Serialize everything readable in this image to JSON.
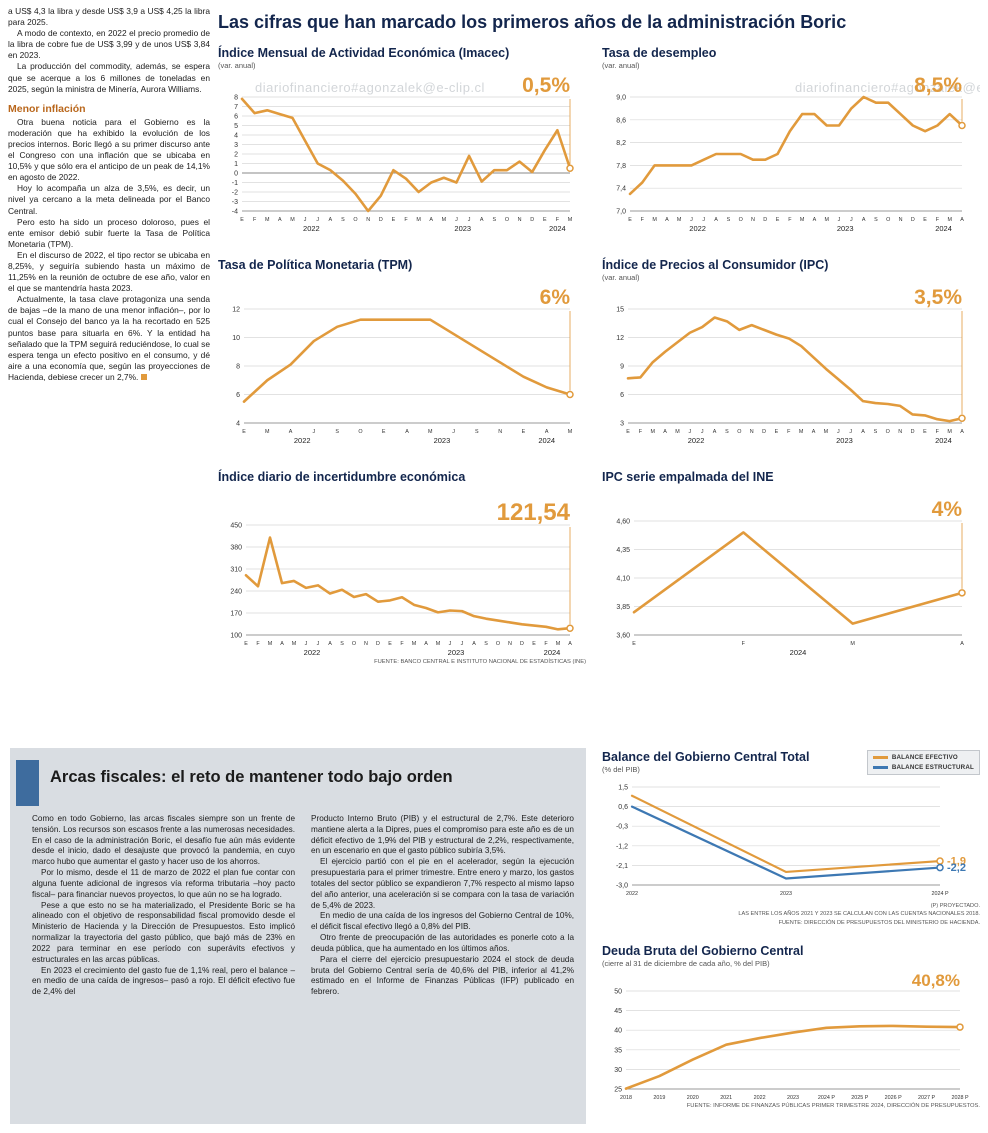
{
  "watermark": "diariofinanciero#agonzalek@e-clip.cl",
  "colors": {
    "accent_orange": "#E19A3C",
    "accent_blue": "#3D78B3",
    "headline_navy": "#13264D",
    "subhead_brown": "#B9671C",
    "panel_gray": "#D9DDE2"
  },
  "left_article": {
    "paragraphs": [
      "a US$ 4,3 la libra y desde US$ 3,9 a US$ 4,25 la libra para 2025.",
      "A modo de contexto, en 2022 el precio promedio de la libra de cobre fue de US$ 3,99 y de unos US$ 3,84 en 2023.",
      "La producción del commodity, además, se espera que se acerque a los 6 millones de toneladas en 2025, según la ministra de Minería, Aurora Williams."
    ],
    "subhead": "Menor inflación",
    "paragraphs2": [
      "Otra buena noticia para el Gobierno es la moderación que ha exhibido la evolución de los precios internos. Boric llegó a su primer discurso ante el Congreso con una inflación que se ubicaba en 10,5% y que sólo era el anticipo de un peak de 14,1% en agosto de 2022.",
      "Hoy lo acompaña un alza de 3,5%, es decir, un nivel ya cercano a la meta delineada por el Banco Central.",
      "Pero esto ha sido un proceso doloroso, pues el ente emisor debió subir fuerte la Tasa de Política Monetaria (TPM).",
      "En el discurso de 2022, el tipo rector se ubicaba en 8,25%, y seguiría subiendo hasta un máximo de 11,25% en la reunión de octubre de ese año, valor en el que se mantendría hasta 2023.",
      "Actualmente, la tasa clave protagoniza una senda de bajas –de la mano de una menor inflación–, por lo cual el Consejo del banco ya la ha recortado en 525 puntos base para situarla en 6%. Y la entidad ha señalado que la TPM seguirá reduciéndose, lo cual se espera tenga un efecto positivo en el consumo, y dé aire a una economía que, según las proyecciones de Hacienda, debiese crecer un 2,7%."
    ]
  },
  "main": {
    "headline": "Las cifras que han marcado los primeros años de la administración Boric"
  },
  "fiscal": {
    "headline": "Arcas fiscales: el reto de mantener todo bajo orden",
    "col1": [
      "Como en todo Gobierno, las arcas fiscales siempre son un frente de tensión. Los recursos son escasos frente a las numerosas necesidades. En el caso de la administración Boric, el desafío fue aún más evidente desde el inicio, dado el desajuste que provocó la pandemia, en cuyo marco hubo que aumentar el gasto y hacer uso de los ahorros.",
      "Por lo mismo, desde el 11 de marzo de 2022 el plan fue contar con alguna fuente adicional de ingresos vía reforma tributaria –hoy pacto fiscal– para financiar nuevos proyectos, lo que aún no se ha logrado.",
      "Pese a que esto no se ha materializado, el Presidente Boric se ha alineado con el objetivo de responsabilidad fiscal promovido desde el Ministerio de Hacienda y la Dirección de Presupuestos. Esto implicó normalizar la trayectoria del gasto público, que bajó más de 23% en 2022 para terminar en ese período con superávits efectivos y estructurales en las arcas públicas.",
      "En 2023 el crecimiento del gasto fue de 1,1% real, pero el balance –en medio de una caída de ingresos– pasó a rojo. El déficit efectivo fue de 2,4% del"
    ],
    "col2": [
      "Producto Interno Bruto (PIB) y el estructural de 2,7%. Este deterioro mantiene alerta a la Dipres, pues el compromiso para este año es de un déficit efectivo de 1,9% del PIB y estructural de 2,2%, respectivamente, en un escenario en que el gasto público subiría 3,5%.",
      "El ejercicio partió con el pie en el acelerador, según la ejecución presupuestaria para el primer trimestre. Entre enero y marzo, los gastos totales del sector público se expandieron 7,7% respecto al mismo lapso del año anterior, una aceleración si se compara con la tasa de variación de 5,4% de 2023.",
      "En medio de una caída de los ingresos del Gobierno Central de 10%, el déficit fiscal efectivo llegó a 0,8% del PIB.",
      "Otro frente de preocupación de las autoridades es ponerle coto a la deuda pública, que ha aumentado en los últimos años.",
      "Para el cierre del ejercicio presupuestario 2024 el stock de deuda bruta del Gobierno Central sería de 40,6% del PIB, inferior al 41,2% estimado en el Informe de Finanzas Públicas (IFP) publicado en febrero."
    ]
  },
  "chart_data": [
    {
      "type": "line",
      "title": "Índice Mensual de Actividad Económica (Imacec)",
      "subtitle": "(var. anual)",
      "value_label": "0,5%",
      "value_size": 21,
      "ylim": [
        -4,
        8
      ],
      "zero_dark": true,
      "padding": {
        "l": 24,
        "r": 16,
        "t": 26,
        "b": 24
      },
      "yticks": [
        {
          "v": 8,
          "label": "8"
        },
        {
          "v": 7,
          "label": "7"
        },
        {
          "v": 6,
          "label": "6"
        },
        {
          "v": 5,
          "label": "5"
        },
        {
          "v": 4,
          "label": "4"
        },
        {
          "v": 3,
          "label": "3"
        },
        {
          "v": 2,
          "label": "2"
        },
        {
          "v": 1,
          "label": "1"
        },
        {
          "v": 0,
          "label": "0"
        },
        {
          "v": -1,
          "label": "-1"
        },
        {
          "v": -2,
          "label": "-2"
        },
        {
          "v": -3,
          "label": "-3"
        },
        {
          "v": -4,
          "label": "-4"
        }
      ],
      "x_labels": [
        "E",
        "F",
        "M",
        "A",
        "M",
        "J",
        "J",
        "A",
        "S",
        "O",
        "N",
        "D",
        "E",
        "F",
        "M",
        "A",
        "M",
        "J",
        "J",
        "A",
        "S",
        "O",
        "N",
        "D",
        "E",
        "F",
        "M"
      ],
      "years": [
        {
          "label": "2022",
          "from": 0,
          "to": 11
        },
        {
          "label": "2023",
          "from": 12,
          "to": 23
        },
        {
          "label": "2024",
          "from": 24,
          "to": 26
        }
      ],
      "series": [
        {
          "name": "Imacec var. anual",
          "color": "#E19A3C",
          "values": [
            7.8,
            6.3,
            6.6,
            6.2,
            5.8,
            3.4,
            1.0,
            0.3,
            -0.8,
            -2.2,
            -4.0,
            -2.4,
            0.3,
            -0.6,
            -2.0,
            -1.0,
            -0.5,
            -1.0,
            1.8,
            -0.9,
            0.3,
            0.3,
            1.2,
            0.1,
            2.4,
            4.5,
            0.5
          ],
          "endpoint": true,
          "callout": true
        }
      ]
    },
    {
      "type": "line",
      "title": "Tasa de desempleo",
      "subtitle": "(var. anual)",
      "value_label": "8,5%",
      "value_size": 21,
      "ylim": [
        7.0,
        9.0
      ],
      "padding": {
        "l": 28,
        "r": 16,
        "t": 26,
        "b": 24
      },
      "yticks": [
        {
          "v": 9.0,
          "label": "9,0"
        },
        {
          "v": 8.6,
          "label": "8,6"
        },
        {
          "v": 8.2,
          "label": "8,2"
        },
        {
          "v": 7.8,
          "label": "7,8"
        },
        {
          "v": 7.4,
          "label": "7,4"
        },
        {
          "v": 7.0,
          "label": "7,0"
        }
      ],
      "x_labels": [
        "E",
        "F",
        "M",
        "A",
        "M",
        "J",
        "J",
        "A",
        "S",
        "O",
        "N",
        "D",
        "E",
        "F",
        "M",
        "A",
        "M",
        "J",
        "J",
        "A",
        "S",
        "O",
        "N",
        "D",
        "E",
        "F",
        "M",
        "A"
      ],
      "years": [
        {
          "label": "2022",
          "from": 0,
          "to": 11
        },
        {
          "label": "2023",
          "from": 12,
          "to": 23
        },
        {
          "label": "2024",
          "from": 24,
          "to": 27
        }
      ],
      "series": [
        {
          "name": "Tasa de desempleo",
          "color": "#E19A3C",
          "values": [
            7.3,
            7.5,
            7.8,
            7.8,
            7.8,
            7.8,
            7.9,
            8.0,
            8.0,
            8.0,
            7.9,
            7.9,
            8.0,
            8.4,
            8.7,
            8.7,
            8.5,
            8.5,
            8.8,
            9.0,
            8.9,
            8.9,
            8.7,
            8.5,
            8.4,
            8.5,
            8.7,
            8.5
          ],
          "endpoint": true,
          "callout": true
        }
      ]
    },
    {
      "type": "line",
      "title": "Tasa de Política Monetaria (TPM)",
      "value_label": "6%",
      "value_size": 21,
      "ylim": [
        4,
        12
      ],
      "padding": {
        "l": 26,
        "r": 16,
        "t": 26,
        "b": 24
      },
      "yticks": [
        {
          "v": 12,
          "label": "12"
        },
        {
          "v": 10,
          "label": "10"
        },
        {
          "v": 8,
          "label": "8"
        },
        {
          "v": 6,
          "label": "6"
        },
        {
          "v": 4,
          "label": "4"
        }
      ],
      "x_labels": [
        "E",
        "M",
        "A",
        "J",
        "S",
        "O",
        "E",
        "A",
        "M",
        "J",
        "S",
        "N",
        "E",
        "A",
        "M"
      ],
      "years": [
        {
          "label": "2022",
          "from": 0,
          "to": 5
        },
        {
          "label": "2023",
          "from": 6,
          "to": 11
        },
        {
          "label": "2024",
          "from": 12,
          "to": 14
        }
      ],
      "series": [
        {
          "name": "TPM",
          "color": "#E19A3C",
          "values": [
            5.5,
            7.0,
            8.1,
            9.75,
            10.75,
            11.25,
            11.25,
            11.25,
            11.25,
            10.25,
            9.25,
            8.25,
            7.25,
            6.5,
            6.0
          ],
          "endpoint": true,
          "callout": true
        }
      ]
    },
    {
      "type": "line",
      "title": "Índice de Precios al Consumidor (IPC)",
      "subtitle": "(var. anual)",
      "value_label": "3,5%",
      "value_size": 21,
      "ylim": [
        3,
        15
      ],
      "padding": {
        "l": 26,
        "r": 16,
        "t": 26,
        "b": 24
      },
      "yticks": [
        {
          "v": 15,
          "label": "15"
        },
        {
          "v": 12,
          "label": "12"
        },
        {
          "v": 9,
          "label": "9"
        },
        {
          "v": 6,
          "label": "6"
        },
        {
          "v": 3,
          "label": "3"
        }
      ],
      "x_labels": [
        "E",
        "F",
        "M",
        "A",
        "M",
        "J",
        "J",
        "A",
        "S",
        "O",
        "N",
        "D",
        "E",
        "F",
        "M",
        "A",
        "M",
        "J",
        "J",
        "A",
        "S",
        "O",
        "N",
        "D",
        "E",
        "F",
        "M",
        "A"
      ],
      "years": [
        {
          "label": "2022",
          "from": 0,
          "to": 11
        },
        {
          "label": "2023",
          "from": 12,
          "to": 23
        },
        {
          "label": "2024",
          "from": 24,
          "to": 27
        }
      ],
      "series": [
        {
          "name": "IPC var. anual",
          "color": "#E19A3C",
          "values": [
            7.7,
            7.8,
            9.4,
            10.5,
            11.5,
            12.5,
            13.1,
            14.1,
            13.7,
            12.8,
            13.3,
            12.8,
            12.3,
            11.9,
            11.1,
            9.9,
            8.7,
            7.6,
            6.5,
            5.3,
            5.1,
            5.0,
            4.8,
            3.9,
            3.8,
            3.4,
            3.2,
            3.5
          ],
          "endpoint": true,
          "callout": true
        }
      ]
    },
    {
      "type": "line",
      "title": "Índice diario de incertidumbre económica",
      "value_label": "121,54",
      "value_size": 24,
      "ylim": [
        100,
        450
      ],
      "padding": {
        "l": 28,
        "r": 16,
        "t": 30,
        "b": 24
      },
      "yticks": [
        {
          "v": 450,
          "label": "450"
        },
        {
          "v": 380,
          "label": "380"
        },
        {
          "v": 310,
          "label": "310"
        },
        {
          "v": 240,
          "label": "240"
        },
        {
          "v": 170,
          "label": "170"
        },
        {
          "v": 100,
          "label": "100"
        }
      ],
      "x_labels": [
        "E",
        "F",
        "M",
        "A",
        "M",
        "J",
        "J",
        "A",
        "S",
        "O",
        "N",
        "D",
        "E",
        "F",
        "M",
        "A",
        "M",
        "J",
        "J",
        "A",
        "S",
        "O",
        "N",
        "D",
        "E",
        "F",
        "M",
        "A"
      ],
      "years": [
        {
          "label": "2022",
          "from": 0,
          "to": 11
        },
        {
          "label": "2023",
          "from": 12,
          "to": 23
        },
        {
          "label": "2024",
          "from": 24,
          "to": 27
        }
      ],
      "series": [
        {
          "name": "Incertidumbre económica",
          "color": "#E19A3C",
          "values": [
            290,
            255,
            410,
            265,
            272,
            250,
            258,
            232,
            244,
            221,
            230,
            206,
            210,
            220,
            196,
            186,
            172,
            178,
            176,
            160,
            152,
            146,
            140,
            134,
            130,
            126,
            118,
            121.54
          ],
          "endpoint": true,
          "callout": true
        }
      ],
      "source": "FUENTE: BANCO CENTRAL E INSTITUTO NACIONAL DE ESTADÍSTICAS (INE)"
    },
    {
      "type": "line",
      "title": "IPC serie empalmada del INE",
      "value_label": "4%",
      "value_size": 21,
      "ylim": [
        3.6,
        4.6
      ],
      "padding": {
        "l": 32,
        "r": 16,
        "t": 26,
        "b": 24
      },
      "yticks": [
        {
          "v": 4.6,
          "label": "4,60"
        },
        {
          "v": 4.35,
          "label": "4,35"
        },
        {
          "v": 4.1,
          "label": "4,10"
        },
        {
          "v": 3.85,
          "label": "3,85"
        },
        {
          "v": 3.6,
          "label": "3,60"
        }
      ],
      "x_labels": [
        "E",
        "F",
        "M",
        "A"
      ],
      "years": [
        {
          "label": "2024",
          "from": 0,
          "to": 3
        }
      ],
      "series": [
        {
          "name": "IPC serie empalmada",
          "color": "#E19A3C",
          "values": [
            3.8,
            4.5,
            3.7,
            3.97
          ],
          "endpoint": true,
          "callout": true
        }
      ]
    },
    {
      "type": "line",
      "title": "Balance del Gobierno Central Total",
      "subtitle": "(% del PIB)",
      "legend": [
        "BALANCE EFECTIVO",
        "BALANCE ESTRUCTURAL"
      ],
      "ylim": [
        -3.0,
        1.5
      ],
      "padding": {
        "l": 30,
        "r": 40,
        "t": 12,
        "b": 16
      },
      "yticks": [
        {
          "v": 1.5,
          "label": "1,5"
        },
        {
          "v": 0.6,
          "label": "0,6"
        },
        {
          "v": -0.3,
          "label": "-0,3"
        },
        {
          "v": -1.2,
          "label": "-1,2"
        },
        {
          "v": -2.1,
          "label": "-2,1"
        },
        {
          "v": -3.0,
          "label": "-3,0"
        }
      ],
      "x_labels": [
        "2022",
        "2023",
        "2024 P"
      ],
      "series": [
        {
          "name": "Balance efectivo",
          "color": "#E19A3C",
          "values": [
            1.1,
            -2.4,
            -1.9
          ],
          "width": 2.2,
          "endpoint": true,
          "end_label": "-1,9"
        },
        {
          "name": "Balance estructural",
          "color": "#3D78B3",
          "values": [
            0.6,
            -2.7,
            -2.2
          ],
          "width": 2.2,
          "endpoint": true,
          "end_label": "-2,2"
        }
      ],
      "footnotes": [
        "(P) PROYECTADO.",
        "LAS ENTRE LOS AÑOS 2021 Y 2023 SE CALCULAN CON LAS CUENTAS NACIONALES 2018.",
        "FUENTE: DIRECCIÓN DE PRESUPUESTOS DEL MINISTERIO DE HACIENDA."
      ]
    },
    {
      "type": "line",
      "title": "Deuda Bruta del Gobierno Central",
      "subtitle": "(cierre al 31 de diciembre de cada año, % del PIB)",
      "value_label": "40,8%",
      "value_size": 17,
      "ylim": [
        25,
        50
      ],
      "padding": {
        "l": 24,
        "r": 20,
        "t": 22,
        "b": 14
      },
      "yticks": [
        {
          "v": 50,
          "label": "50"
        },
        {
          "v": 45,
          "label": "45"
        },
        {
          "v": 40,
          "label": "40"
        },
        {
          "v": 35,
          "label": "35"
        },
        {
          "v": 30,
          "label": "30"
        },
        {
          "v": 25,
          "label": "25"
        }
      ],
      "x_labels": [
        "2018",
        "2019",
        "2020",
        "2021",
        "2022",
        "2023",
        "2024 P",
        "2025 P",
        "2026 P",
        "2027 P",
        "2028 P"
      ],
      "x_label_size": 6.4,
      "series": [
        {
          "name": "Deuda bruta",
          "color": "#E19A3C",
          "values": [
            25.1,
            28.3,
            32.5,
            36.3,
            38.0,
            39.4,
            40.6,
            41.0,
            41.1,
            40.9,
            40.8
          ],
          "endpoint": true
        }
      ],
      "source": "FUENTE: INFORME DE FINANZAS PÚBLICAS PRIMER TRIMESTRE 2024, DIRECCIÓN DE PRESUPUESTOS."
    }
  ]
}
